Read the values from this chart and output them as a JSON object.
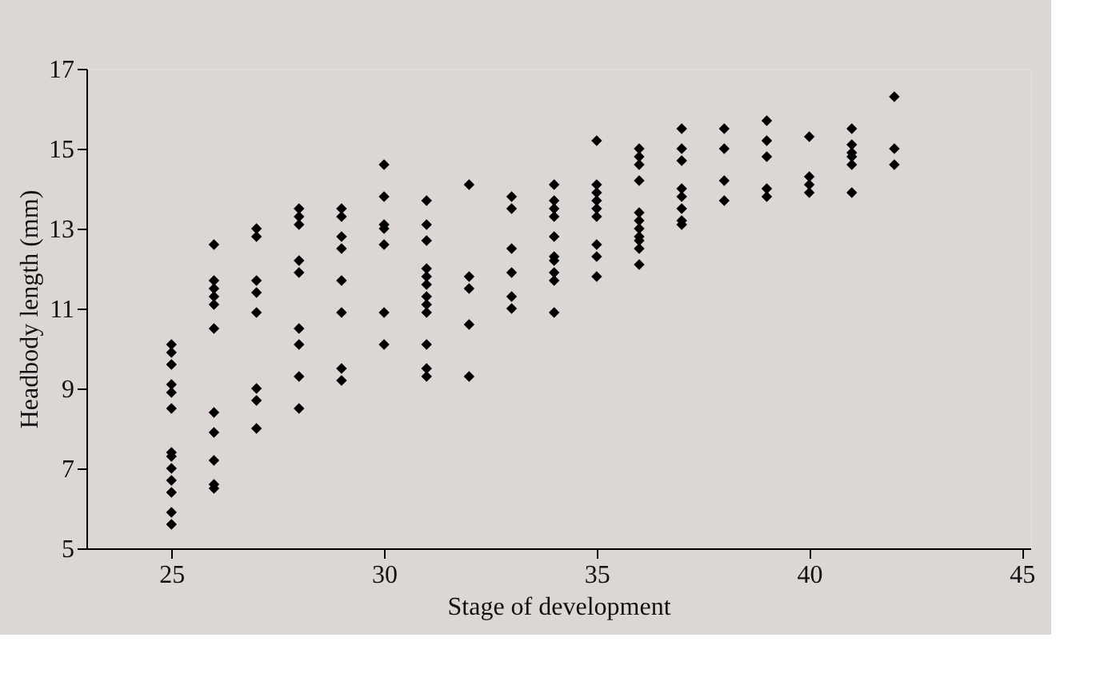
{
  "chart_data": {
    "type": "scatter",
    "xlabel": "Stage of development",
    "ylabel": "Headbody length (mm)",
    "xlim": [
      23,
      45.2
    ],
    "xticks": [
      25,
      30,
      35,
      40,
      45
    ],
    "ylim": [
      5,
      17
    ],
    "yticks": [
      5,
      7,
      9,
      11,
      13,
      15,
      17
    ],
    "grid": false,
    "marker": "diamond",
    "series": [
      {
        "color": "#000000",
        "x": [
          25,
          25,
          25,
          25,
          25,
          25,
          25,
          25,
          25,
          25,
          25,
          25,
          25,
          26,
          26,
          26,
          26,
          26,
          26,
          26,
          26,
          26,
          26,
          26,
          27,
          27,
          27,
          27,
          27,
          27,
          27,
          27,
          28,
          28,
          28,
          28,
          28,
          28,
          28,
          28,
          28,
          29,
          29,
          29,
          29,
          29,
          29,
          29,
          29,
          30,
          30,
          30,
          30,
          30,
          30,
          30,
          31,
          31,
          31,
          31,
          31,
          31,
          31,
          31,
          31,
          31,
          31,
          31,
          32,
          32,
          32,
          32,
          32,
          33,
          33,
          33,
          33,
          33,
          33,
          34,
          34,
          34,
          34,
          34,
          34,
          34,
          34,
          34,
          34,
          35,
          35,
          35,
          35,
          35,
          35,
          35,
          35,
          35,
          36,
          36,
          36,
          36,
          36,
          36,
          36,
          36,
          36,
          36,
          36,
          37,
          37,
          37,
          37,
          37,
          37,
          37,
          37,
          38,
          38,
          38,
          38,
          39,
          39,
          39,
          39,
          39,
          40,
          40,
          40,
          40,
          41,
          41,
          41,
          41,
          41,
          41,
          42,
          42,
          42
        ],
        "values": [
          10.1,
          9.9,
          9.6,
          9.1,
          8.9,
          8.5,
          7.4,
          7.3,
          7.0,
          6.7,
          6.4,
          5.9,
          5.6,
          12.6,
          11.7,
          11.5,
          11.3,
          11.1,
          10.5,
          8.4,
          7.9,
          7.2,
          6.6,
          6.5,
          13.0,
          12.8,
          11.7,
          11.4,
          10.9,
          9.0,
          8.7,
          8.0,
          13.5,
          13.3,
          13.1,
          12.2,
          11.9,
          10.5,
          10.1,
          9.3,
          8.5,
          13.5,
          13.3,
          12.8,
          12.5,
          11.7,
          10.9,
          9.5,
          9.2,
          14.6,
          13.8,
          13.1,
          13.0,
          12.6,
          10.9,
          10.1,
          13.7,
          13.1,
          12.7,
          12.0,
          11.8,
          11.6,
          11.3,
          11.1,
          10.9,
          10.1,
          9.5,
          9.3,
          14.1,
          11.8,
          11.5,
          10.6,
          9.3,
          13.8,
          13.5,
          12.5,
          11.9,
          11.3,
          11.0,
          14.1,
          13.7,
          13.5,
          13.3,
          12.8,
          12.3,
          12.2,
          11.9,
          11.7,
          10.9,
          15.2,
          14.1,
          13.9,
          13.7,
          13.5,
          13.3,
          12.6,
          12.3,
          11.8,
          15.0,
          14.8,
          14.6,
          14.2,
          13.4,
          13.2,
          13.0,
          12.8,
          12.7,
          12.5,
          12.1,
          15.5,
          15.0,
          14.7,
          14.0,
          13.8,
          13.5,
          13.2,
          13.1,
          15.5,
          15.0,
          14.2,
          13.7,
          15.7,
          15.2,
          14.8,
          14.0,
          13.8,
          15.3,
          14.3,
          14.1,
          13.9,
          15.5,
          15.1,
          14.9,
          14.8,
          14.6,
          13.9,
          16.3,
          15.0,
          14.6
        ]
      }
    ]
  }
}
